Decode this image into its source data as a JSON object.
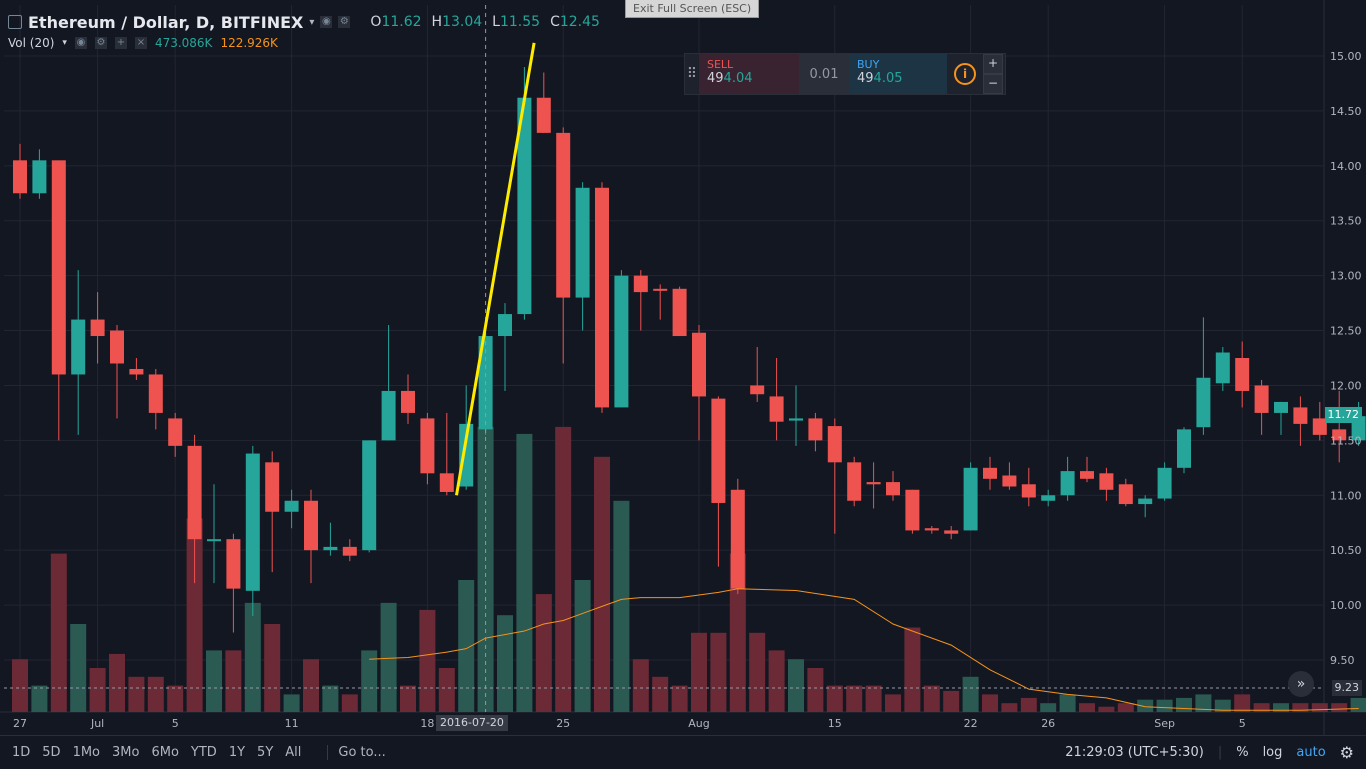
{
  "header": {
    "symbol": "Ethereum / Dollar, D, BITFINEX",
    "open_label": "O",
    "open": "11.62",
    "high_label": "H",
    "high": "13.04",
    "low_label": "L",
    "low": "11.55",
    "close_label": "C",
    "close": "12.45",
    "volume_indicator": "Vol (20)",
    "volume_value": "473.086K",
    "volume_ma": "122.926K"
  },
  "exit_fullscreen": "Exit Full Screen (ESC)",
  "trade_panel": {
    "sell_label": "SELL",
    "sell_price_prefix": "49",
    "sell_price_suffix": "4.04",
    "spread": "0.01",
    "buy_label": "BUY",
    "buy_price_prefix": "49",
    "buy_price_suffix": "4.05",
    "info_icon": "info-icon",
    "plus": "+",
    "minus": "−"
  },
  "price_tags": {
    "last_close": "11.72",
    "volume_level": "9.23"
  },
  "crosshair_date": "2016-07-20",
  "bottom_bar": {
    "ranges": [
      "1D",
      "5D",
      "1Mo",
      "3Mo",
      "6Mo",
      "YTD",
      "1Y",
      "5Y",
      "All"
    ],
    "goto": "Go to...",
    "clock": "21:29:03 (UTC+5:30)",
    "percent": "%",
    "log": "log",
    "auto": "auto"
  },
  "colors": {
    "up": "#26a69a",
    "down": "#ef5350",
    "ma": "#f7931a",
    "trendline": "#ffeb00",
    "background": "#131722"
  },
  "chart_data": {
    "type": "candlestick",
    "title": "Ethereum / Dollar, D, BITFINEX",
    "ylim": [
      9.0,
      15.25
    ],
    "yticks": [
      9.5,
      10.0,
      10.5,
      11.0,
      11.5,
      12.0,
      12.5,
      13.0,
      13.5,
      14.0,
      14.5,
      15.0
    ],
    "x_tick_labels": [
      {
        "index": 0,
        "label": "27"
      },
      {
        "index": 4,
        "label": "Jul"
      },
      {
        "index": 8,
        "label": "5"
      },
      {
        "index": 14,
        "label": "11"
      },
      {
        "index": 21,
        "label": "18"
      },
      {
        "index": 28,
        "label": "25"
      },
      {
        "index": 35,
        "label": "Aug"
      },
      {
        "index": 42,
        "label": "15"
      },
      {
        "index": 49,
        "label": "22"
      },
      {
        "index": 53,
        "label": "26"
      },
      {
        "index": 59,
        "label": "Sep"
      },
      {
        "index": 63,
        "label": "5"
      }
    ],
    "candles": [
      {
        "o": 14.05,
        "h": 14.2,
        "l": 13.7,
        "c": 13.75,
        "v": 0.3
      },
      {
        "o": 13.75,
        "h": 14.15,
        "l": 13.7,
        "c": 14.05,
        "v": 0.15
      },
      {
        "o": 14.05,
        "h": 14.05,
        "l": 11.5,
        "c": 12.1,
        "v": 0.9
      },
      {
        "o": 12.1,
        "h": 13.05,
        "l": 11.55,
        "c": 12.6,
        "v": 0.5
      },
      {
        "o": 12.6,
        "h": 12.85,
        "l": 12.2,
        "c": 12.45,
        "v": 0.25
      },
      {
        "o": 12.5,
        "h": 12.55,
        "l": 11.7,
        "c": 12.2,
        "v": 0.33
      },
      {
        "o": 12.15,
        "h": 12.25,
        "l": 12.05,
        "c": 12.1,
        "v": 0.2
      },
      {
        "o": 12.1,
        "h": 12.15,
        "l": 11.6,
        "c": 11.75,
        "v": 0.2
      },
      {
        "o": 11.7,
        "h": 11.75,
        "l": 11.35,
        "c": 11.45,
        "v": 0.15
      },
      {
        "o": 11.45,
        "h": 11.55,
        "l": 10.2,
        "c": 10.6,
        "v": 1.1
      },
      {
        "o": 10.6,
        "h": 11.1,
        "l": 10.2,
        "c": 10.6,
        "v": 0.35
      },
      {
        "o": 10.6,
        "h": 10.65,
        "l": 9.75,
        "c": 10.15,
        "v": 0.35
      },
      {
        "o": 10.13,
        "h": 11.45,
        "l": 9.9,
        "c": 11.38,
        "v": 0.62
      },
      {
        "o": 11.3,
        "h": 11.4,
        "l": 10.3,
        "c": 10.85,
        "v": 0.5
      },
      {
        "o": 10.85,
        "h": 11.05,
        "l": 10.7,
        "c": 10.95,
        "v": 0.1
      },
      {
        "o": 10.95,
        "h": 11.05,
        "l": 10.2,
        "c": 10.5,
        "v": 0.3
      },
      {
        "o": 10.5,
        "h": 10.75,
        "l": 10.45,
        "c": 10.53,
        "v": 0.15
      },
      {
        "o": 10.53,
        "h": 10.6,
        "l": 10.4,
        "c": 10.45,
        "v": 0.1
      },
      {
        "o": 10.5,
        "h": 11.5,
        "l": 10.48,
        "c": 11.5,
        "v": 0.35
      },
      {
        "o": 11.5,
        "h": 12.55,
        "l": 11.5,
        "c": 11.95,
        "v": 0.62
      },
      {
        "o": 11.95,
        "h": 12.1,
        "l": 11.65,
        "c": 11.75,
        "v": 0.15
      },
      {
        "o": 11.7,
        "h": 11.75,
        "l": 11.1,
        "c": 11.2,
        "v": 0.58
      },
      {
        "o": 11.2,
        "h": 11.75,
        "l": 11.0,
        "c": 11.03,
        "v": 0.25
      },
      {
        "o": 11.08,
        "h": 12.0,
        "l": 11.05,
        "c": 11.65,
        "v": 0.75
      },
      {
        "o": 11.6,
        "h": 12.55,
        "l": 11.55,
        "c": 12.45,
        "v": 1.62
      },
      {
        "o": 12.45,
        "h": 12.75,
        "l": 11.95,
        "c": 12.65,
        "v": 0.55
      },
      {
        "o": 12.65,
        "h": 14.9,
        "l": 12.6,
        "c": 14.62,
        "v": 1.58
      },
      {
        "o": 14.62,
        "h": 14.85,
        "l": 14.3,
        "c": 14.3,
        "v": 0.67
      },
      {
        "o": 14.3,
        "h": 14.35,
        "l": 12.2,
        "c": 12.8,
        "v": 1.62
      },
      {
        "o": 12.8,
        "h": 13.85,
        "l": 12.5,
        "c": 13.8,
        "v": 0.75
      },
      {
        "o": 13.8,
        "h": 13.85,
        "l": 11.75,
        "c": 11.8,
        "v": 1.45
      },
      {
        "o": 11.8,
        "h": 13.05,
        "l": 11.8,
        "c": 13.0,
        "v": 1.2
      },
      {
        "o": 13.0,
        "h": 13.05,
        "l": 12.5,
        "c": 12.85,
        "v": 0.3
      },
      {
        "o": 12.88,
        "h": 12.92,
        "l": 12.6,
        "c": 12.87,
        "v": 0.2
      },
      {
        "o": 12.88,
        "h": 12.9,
        "l": 12.45,
        "c": 12.45,
        "v": 0.15
      },
      {
        "o": 12.48,
        "h": 12.55,
        "l": 11.5,
        "c": 11.9,
        "v": 0.45
      },
      {
        "o": 11.88,
        "h": 11.9,
        "l": 10.35,
        "c": 10.93,
        "v": 0.45
      },
      {
        "o": 11.05,
        "h": 11.15,
        "l": 10.1,
        "c": 10.15,
        "v": 0.9
      },
      {
        "o": 12.0,
        "h": 12.35,
        "l": 11.85,
        "c": 11.92,
        "v": 0.45
      },
      {
        "o": 11.9,
        "h": 12.25,
        "l": 11.5,
        "c": 11.67,
        "v": 0.35
      },
      {
        "o": 11.68,
        "h": 12.0,
        "l": 11.45,
        "c": 11.7,
        "v": 0.3
      },
      {
        "o": 11.7,
        "h": 11.75,
        "l": 11.4,
        "c": 11.5,
        "v": 0.25
      },
      {
        "o": 11.63,
        "h": 11.7,
        "l": 10.65,
        "c": 11.3,
        "v": 0.15
      },
      {
        "o": 11.3,
        "h": 11.35,
        "l": 10.9,
        "c": 10.95,
        "v": 0.15
      },
      {
        "o": 11.12,
        "h": 11.3,
        "l": 10.88,
        "c": 11.1,
        "v": 0.15
      },
      {
        "o": 11.12,
        "h": 11.22,
        "l": 10.95,
        "c": 11.0,
        "v": 0.1
      },
      {
        "o": 11.05,
        "h": 11.05,
        "l": 10.65,
        "c": 10.68,
        "v": 0.48
      },
      {
        "o": 10.7,
        "h": 10.72,
        "l": 10.65,
        "c": 10.68,
        "v": 0.15
      },
      {
        "o": 10.68,
        "h": 10.72,
        "l": 10.6,
        "c": 10.65,
        "v": 0.12
      },
      {
        "o": 10.68,
        "h": 11.3,
        "l": 10.68,
        "c": 11.25,
        "v": 0.2
      },
      {
        "o": 11.25,
        "h": 11.35,
        "l": 11.05,
        "c": 11.15,
        "v": 0.1
      },
      {
        "o": 11.18,
        "h": 11.3,
        "l": 11.05,
        "c": 11.08,
        "v": 0.05
      },
      {
        "o": 11.1,
        "h": 11.25,
        "l": 10.9,
        "c": 10.98,
        "v": 0.08
      },
      {
        "o": 10.95,
        "h": 11.05,
        "l": 10.9,
        "c": 11.0,
        "v": 0.05
      },
      {
        "o": 11.0,
        "h": 11.35,
        "l": 10.95,
        "c": 11.22,
        "v": 0.1
      },
      {
        "o": 11.22,
        "h": 11.35,
        "l": 11.12,
        "c": 11.15,
        "v": 0.05
      },
      {
        "o": 11.2,
        "h": 11.25,
        "l": 10.95,
        "c": 11.05,
        "v": 0.03
      },
      {
        "o": 11.1,
        "h": 11.15,
        "l": 10.9,
        "c": 10.92,
        "v": 0.05
      },
      {
        "o": 10.92,
        "h": 11.0,
        "l": 10.8,
        "c": 10.97,
        "v": 0.07
      },
      {
        "o": 10.97,
        "h": 11.3,
        "l": 10.95,
        "c": 11.25,
        "v": 0.07
      },
      {
        "o": 11.25,
        "h": 11.62,
        "l": 11.2,
        "c": 11.6,
        "v": 0.08
      },
      {
        "o": 11.62,
        "h": 12.62,
        "l": 11.55,
        "c": 12.07,
        "v": 0.1
      },
      {
        "o": 12.02,
        "h": 12.35,
        "l": 11.95,
        "c": 12.3,
        "v": 0.07
      },
      {
        "o": 12.25,
        "h": 12.4,
        "l": 11.8,
        "c": 11.95,
        "v": 0.1
      },
      {
        "o": 12.0,
        "h": 12.05,
        "l": 11.55,
        "c": 11.75,
        "v": 0.05
      },
      {
        "o": 11.75,
        "h": 11.85,
        "l": 11.55,
        "c": 11.85,
        "v": 0.05
      },
      {
        "o": 11.8,
        "h": 11.9,
        "l": 11.45,
        "c": 11.65,
        "v": 0.05
      },
      {
        "o": 11.7,
        "h": 11.85,
        "l": 11.5,
        "c": 11.55,
        "v": 0.05
      },
      {
        "o": 11.6,
        "h": 11.95,
        "l": 11.3,
        "c": 11.5,
        "v": 0.05
      },
      {
        "o": 11.5,
        "h": 11.85,
        "l": 11.45,
        "c": 11.72,
        "v": 0.08
      }
    ],
    "volume_ma": [
      {
        "index": 18,
        "v": 0.3
      },
      {
        "index": 20,
        "v": 0.31
      },
      {
        "index": 22,
        "v": 0.34
      },
      {
        "index": 23,
        "v": 0.36
      },
      {
        "index": 24,
        "v": 0.42
      },
      {
        "index": 26,
        "v": 0.46
      },
      {
        "index": 27,
        "v": 0.5
      },
      {
        "index": 28,
        "v": 0.52
      },
      {
        "index": 29,
        "v": 0.56
      },
      {
        "index": 30,
        "v": 0.6
      },
      {
        "index": 31,
        "v": 0.64
      },
      {
        "index": 32,
        "v": 0.65
      },
      {
        "index": 34,
        "v": 0.65
      },
      {
        "index": 36,
        "v": 0.68
      },
      {
        "index": 37,
        "v": 0.7
      },
      {
        "index": 40,
        "v": 0.69
      },
      {
        "index": 43,
        "v": 0.64
      },
      {
        "index": 45,
        "v": 0.5
      },
      {
        "index": 48,
        "v": 0.38
      },
      {
        "index": 50,
        "v": 0.24
      },
      {
        "index": 52,
        "v": 0.13
      },
      {
        "index": 54,
        "v": 0.1
      },
      {
        "index": 56,
        "v": 0.08
      },
      {
        "index": 58,
        "v": 0.03
      },
      {
        "index": 62,
        "v": 0.01
      },
      {
        "index": 66,
        "v": 0.01
      },
      {
        "index": 69,
        "v": 0.02
      }
    ],
    "trendline": {
      "from": {
        "index": 22.5,
        "price": 11.0
      },
      "to": {
        "index": 26.5,
        "price": 15.12
      }
    },
    "crosshair": {
      "index": 24
    },
    "volume_level_line": 9.23
  }
}
